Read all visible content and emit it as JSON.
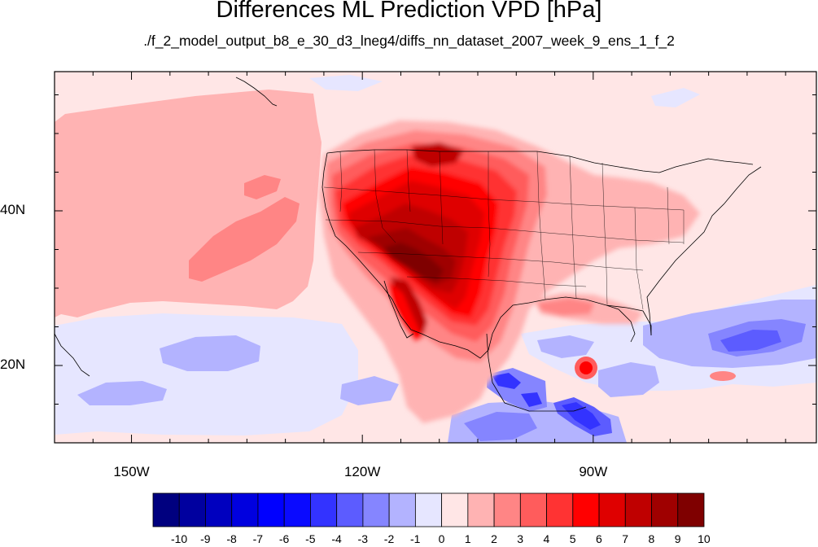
{
  "title": "Differences ML Prediction VPD [hPa]",
  "subtitle": "./f_2_model_output_b8_e_30_d3_lneg4/diffs_nn_dataset_2007_week_9_ens_1_f_2",
  "map": {
    "projection": "cylindrical",
    "lon_range": [
      -160,
      -61
    ],
    "lat_range": [
      10,
      58
    ],
    "lon_ticks": [
      {
        "value": -150,
        "label": "150W"
      },
      {
        "value": -120,
        "label": "120W"
      },
      {
        "value": -90,
        "label": "90W"
      }
    ],
    "lat_ticks": [
      {
        "value": 40,
        "label": "40N"
      },
      {
        "value": 20,
        "label": "20N"
      }
    ]
  },
  "colorbar": {
    "labels": [
      "-10",
      "-9",
      "-8",
      "-7",
      "-6",
      "-5",
      "-4",
      "-3",
      "-2",
      "-1",
      "0",
      "1",
      "2",
      "3",
      "4",
      "5",
      "6",
      "7",
      "8",
      "9",
      "10"
    ],
    "colors": [
      "#00007f",
      "#00009f",
      "#0000bf",
      "#0000df",
      "#0000ff",
      "#0a0aff",
      "#3333ff",
      "#5c5cff",
      "#8585ff",
      "#b3b3ff",
      "#e6e6ff",
      "#ffe6e6",
      "#ffb3b3",
      "#ff8585",
      "#ff5c5c",
      "#ff3333",
      "#ff0000",
      "#df0000",
      "#bf0000",
      "#9f0000",
      "#7f0000"
    ]
  },
  "colors": {
    "background_field": "#ffe6e6",
    "weak_positive": "#ffb3b3",
    "weak_negative": "#e6e6ff"
  }
}
